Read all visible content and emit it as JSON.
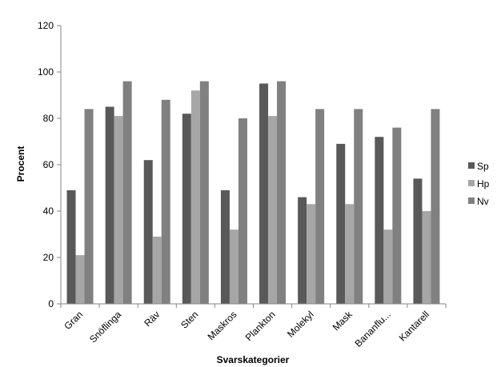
{
  "chart_data": {
    "type": "bar",
    "title": "",
    "xlabel": "Svarskategorier",
    "ylabel": "Procent",
    "ylim": [
      0,
      120
    ],
    "yticks": [
      0,
      20,
      40,
      60,
      80,
      100,
      120
    ],
    "grid": false,
    "legend_position": "right",
    "categories": [
      "Gran",
      "Snöflinga",
      "Räv",
      "Sten",
      "Maskros",
      "Plankton",
      "Molekyl",
      "Mask",
      "Bananflu...",
      "Kantarell"
    ],
    "series": [
      {
        "name": "Sp",
        "color": "#595959",
        "values": [
          49,
          85,
          62,
          82,
          49,
          95,
          46,
          69,
          72,
          54
        ]
      },
      {
        "name": "Hp",
        "color": "#a6a6a6",
        "values": [
          21,
          81,
          29,
          92,
          32,
          81,
          43,
          43,
          32,
          40
        ]
      },
      {
        "name": "Nv",
        "color": "#808080",
        "values": [
          84,
          96,
          88,
          96,
          80,
          96,
          84,
          84,
          76,
          84
        ]
      }
    ]
  }
}
